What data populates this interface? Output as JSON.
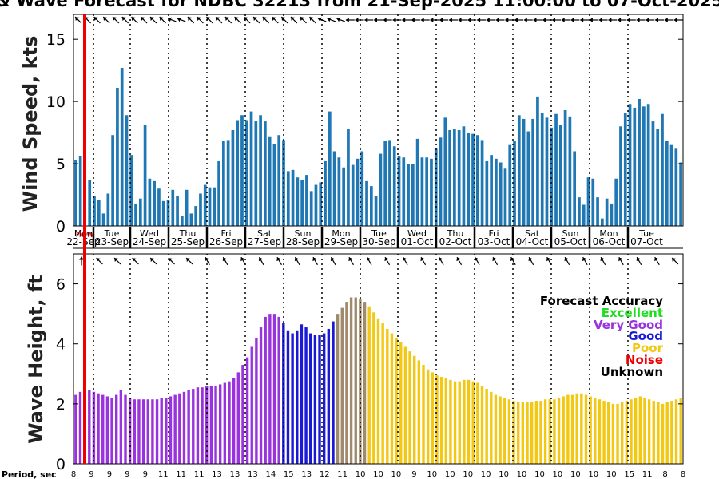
{
  "chart_data": [
    {
      "type": "bar",
      "title": "& Wave Forecast for NDBC 32213 from 21-Sep-2025 11:00:00 to 07-Oct-2025",
      "ylabel": "Wind Speed, kts",
      "ylim": [
        0,
        17
      ],
      "yticks": [
        "0",
        "5",
        "10",
        "15"
      ],
      "color": "#1f77b4",
      "values": [
        5.3,
        5.6,
        0,
        3.7,
        2.4,
        2.1,
        1.0,
        2.6,
        7.3,
        11.1,
        12.7,
        8.9,
        5.7,
        1.8,
        2.2,
        8.1,
        3.8,
        3.6,
        3.0,
        2.0,
        2.1,
        2.9,
        2.4,
        0.8,
        2.9,
        1.0,
        1.6,
        2.6,
        3.3,
        3.1,
        3.1,
        5.2,
        6.8,
        6.9,
        7.7,
        8.5,
        8.9,
        8.5,
        9.2,
        8.4,
        8.9,
        8.4,
        7.2,
        6.6,
        7.3,
        6.9,
        4.4,
        4.5,
        3.9,
        3.7,
        4.1,
        2.8,
        3.3,
        3.5,
        5.2,
        9.2,
        6.0,
        5.5,
        4.7,
        7.8,
        4.9,
        5.4,
        6.0,
        3.6,
        3.2,
        2.4,
        5.8,
        6.8,
        6.9,
        6.4,
        5.6,
        5.5,
        5.0,
        5.0,
        7.0,
        5.5,
        5.5,
        5.4,
        6.2,
        7.1,
        8.7,
        7.7,
        7.8,
        7.7,
        8.0,
        7.5,
        7.4,
        7.3,
        6.9,
        5.2,
        5.7,
        5.4,
        5.1,
        4.6,
        6.5,
        6.8,
        8.9,
        8.6,
        7.6,
        8.6,
        10.4,
        9.1,
        8.7,
        7.9,
        9.0,
        8.1,
        9.3,
        8.8,
        6.0,
        2.3,
        1.7,
        3.9,
        3.8,
        2.3,
        0.6,
        2.2,
        1.8,
        3.8,
        8.0,
        9.1,
        9.8,
        9.5,
        10.2,
        9.6,
        9.8,
        8.4,
        7.8,
        9.0,
        6.8,
        6.5,
        6.2,
        5.1
      ]
    },
    {
      "type": "bar",
      "ylabel": "Wave Height, ft",
      "ylim": [
        0,
        7
      ],
      "yticks": [
        "0",
        "2",
        "4",
        "6"
      ],
      "values": [
        2.3,
        2.4,
        2.4,
        2.45,
        2.4,
        2.35,
        2.3,
        2.25,
        2.2,
        2.3,
        2.45,
        2.3,
        2.2,
        2.15,
        2.15,
        2.15,
        2.15,
        2.15,
        2.15,
        2.2,
        2.2,
        2.25,
        2.3,
        2.35,
        2.4,
        2.45,
        2.5,
        2.55,
        2.55,
        2.6,
        2.6,
        2.6,
        2.65,
        2.7,
        2.75,
        2.85,
        3.05,
        3.3,
        3.55,
        3.9,
        4.2,
        4.55,
        4.9,
        5.0,
        5.0,
        4.9,
        4.7,
        4.45,
        4.35,
        4.45,
        4.65,
        4.55,
        4.35,
        4.3,
        4.3,
        4.35,
        4.5,
        4.75,
        5.0,
        5.2,
        5.4,
        5.55,
        5.55,
        5.5,
        5.4,
        5.25,
        5.05,
        4.85,
        4.7,
        4.5,
        4.35,
        4.2,
        4.05,
        3.9,
        3.75,
        3.6,
        3.45,
        3.3,
        3.15,
        3.05,
        2.95,
        2.9,
        2.85,
        2.8,
        2.75,
        2.75,
        2.8,
        2.8,
        2.75,
        2.7,
        2.6,
        2.5,
        2.4,
        2.3,
        2.25,
        2.2,
        2.15,
        2.1,
        2.05,
        2.05,
        2.05,
        2.05,
        2.1,
        2.1,
        2.15,
        2.15,
        2.15,
        2.2,
        2.25,
        2.3,
        2.3,
        2.35,
        2.35,
        2.3,
        2.25,
        2.2,
        2.15,
        2.1,
        2.05,
        2.0,
        2.0,
        2.05,
        2.1,
        2.15,
        2.2,
        2.25,
        2.2,
        2.15,
        2.1,
        2.05,
        2.0,
        2.05,
        2.1,
        2.15,
        2.2
      ],
      "quality": [
        "vg",
        "vg",
        "vg",
        "vg",
        "vg",
        "vg",
        "vg",
        "vg",
        "vg",
        "vg",
        "vg",
        "vg",
        "vg",
        "vg",
        "vg",
        "vg",
        "vg",
        "vg",
        "vg",
        "vg",
        "vg",
        "vg",
        "vg",
        "vg",
        "vg",
        "vg",
        "vg",
        "vg",
        "vg",
        "vg",
        "vg",
        "vg",
        "vg",
        "vg",
        "vg",
        "vg",
        "vg",
        "vg",
        "vg",
        "vg",
        "vg",
        "vg",
        "vg",
        "vg",
        "vg",
        "vg",
        "g",
        "g",
        "g",
        "g",
        "g",
        "g",
        "g",
        "g",
        "g",
        "g",
        "g",
        "g",
        "t",
        "t",
        "t",
        "t",
        "t",
        "t",
        "t",
        "p",
        "p",
        "p",
        "p",
        "p",
        "p",
        "p",
        "p",
        "p",
        "p",
        "p",
        "p",
        "p",
        "p",
        "p",
        "p",
        "p",
        "p",
        "p",
        "p",
        "p",
        "p",
        "p",
        "p",
        "p",
        "p",
        "p",
        "p",
        "p",
        "p",
        "p",
        "p",
        "p",
        "p",
        "p",
        "p",
        "p",
        "p",
        "p",
        "p",
        "p",
        "p",
        "p",
        "p",
        "p",
        "p",
        "p",
        "p",
        "p",
        "p",
        "p",
        "p",
        "p",
        "p",
        "p",
        "p",
        "p",
        "p",
        "p",
        "p",
        "p",
        "p",
        "p",
        "p",
        "p",
        "p",
        "p",
        "p",
        "p",
        "p"
      ],
      "quality_colors": {
        "vg": "#9933dd",
        "g": "#1a1ad6",
        "p": "#f2c812",
        "t": "#a08a6e"
      },
      "legend": {
        "title": "Forecast Accuracy",
        "items": [
          {
            "label": "Excellent",
            "color": "#22dd22"
          },
          {
            "label": "Very Good",
            "color": "#9933dd"
          },
          {
            "label": "Good",
            "color": "#1a1ad6"
          },
          {
            "label": "Poor",
            "color": "#f2c812"
          },
          {
            "label": "Noise",
            "color": "#ee0000"
          },
          {
            "label": "Unknown",
            "color": "#000000"
          }
        ]
      }
    }
  ],
  "days": [
    {
      "day": "Mon",
      "date": "22-Sep"
    },
    {
      "day": "Tue",
      "date": "23-Sep"
    },
    {
      "day": "Wed",
      "date": "24-Sep"
    },
    {
      "day": "Thu",
      "date": "25-Sep"
    },
    {
      "day": "Fri",
      "date": "26-Sep"
    },
    {
      "day": "Sat",
      "date": "27-Sep"
    },
    {
      "day": "Sun",
      "date": "28-Sep"
    },
    {
      "day": "Mon",
      "date": "29-Sep"
    },
    {
      "day": "Tue",
      "date": "30-Sep"
    },
    {
      "day": "Wed",
      "date": "01-Oct"
    },
    {
      "day": "Thu",
      "date": "02-Oct"
    },
    {
      "day": "Fri",
      "date": "03-Oct"
    },
    {
      "day": "Sat",
      "date": "04-Oct"
    },
    {
      "day": "Sun",
      "date": "05-Oct"
    },
    {
      "day": "Mon",
      "date": "06-Oct"
    },
    {
      "day": "Tue",
      "date": "07-Oct"
    }
  ],
  "now_label": "now",
  "period_label": "Period, sec",
  "periods": [
    "8",
    "9",
    "9",
    "9",
    "9",
    "11",
    "11",
    "11",
    "13",
    "13",
    "13",
    "14",
    "15",
    "13",
    "12",
    "11",
    "10",
    "10",
    "10",
    "9",
    "10",
    "10",
    "10",
    "10",
    "10",
    "10",
    "10",
    "10",
    "10",
    "10",
    "10",
    "15",
    "11",
    "8",
    "8"
  ],
  "wind_arrows_deg": [
    225,
    225,
    225,
    225,
    225,
    225,
    225,
    225,
    225,
    225,
    200,
    200,
    225,
    225,
    225,
    225,
    225,
    225,
    225,
    225,
    225,
    225,
    225,
    225,
    225,
    225,
    200,
    200,
    200,
    180,
    180,
    180,
    180,
    180,
    180,
    180,
    180,
    180,
    180,
    180,
    180,
    180,
    180,
    180,
    180,
    180,
    180,
    180,
    180,
    180,
    180,
    180,
    180,
    180,
    180,
    180,
    180,
    180,
    180,
    180,
    180,
    180,
    180,
    180,
    180
  ],
  "wave_arrows_deg": [
    270,
    225,
    225,
    225,
    225,
    225,
    225,
    240,
    240,
    240,
    240,
    240,
    240,
    240,
    240,
    240,
    240,
    240,
    240,
    240,
    240,
    240,
    240,
    240,
    240,
    240,
    240,
    240,
    240,
    240,
    240,
    240,
    240,
    225
  ]
}
